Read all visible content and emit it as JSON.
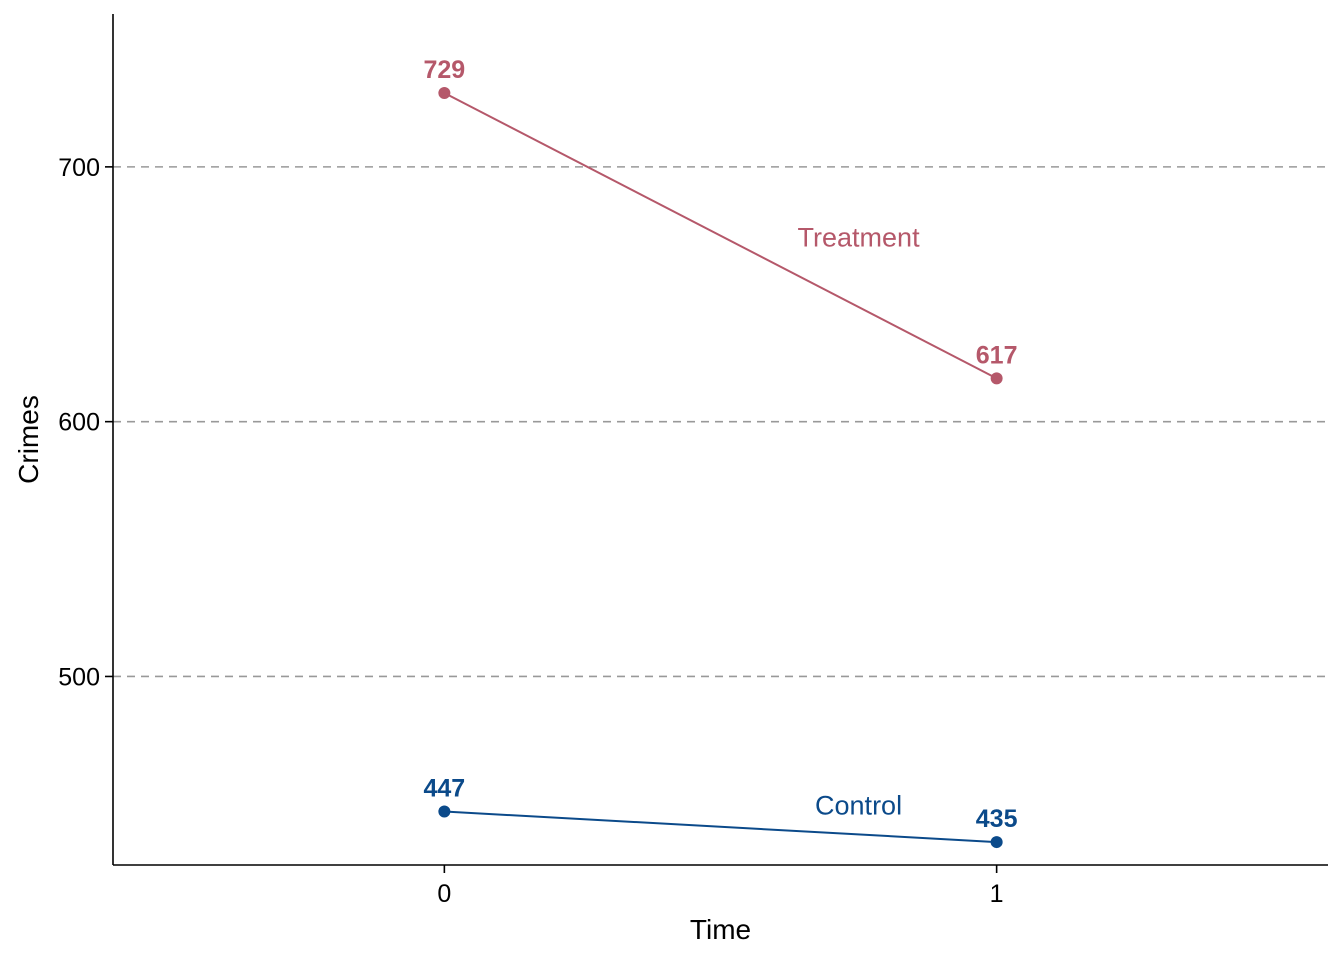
{
  "chart_data": {
    "type": "line",
    "xlabel": "Time",
    "ylabel": "Crimes",
    "x_ticks": [
      "0",
      "1"
    ],
    "y_ticks": [
      500,
      600,
      700
    ],
    "xlim": [
      -0.6,
      1.6
    ],
    "ylim": [
      426,
      760
    ],
    "grid": {
      "horizontal": true,
      "style": "dashed",
      "color": "#999999"
    },
    "legend": "none",
    "series": [
      {
        "name": "Treatment",
        "color": "#b5586a",
        "x": [
          0,
          1
        ],
        "values": [
          729,
          617
        ],
        "labels": [
          "729",
          "617"
        ],
        "name_label_pos": {
          "x": 0.75,
          "y": 670
        }
      },
      {
        "name": "Control",
        "color": "#0b4a8a",
        "x": [
          0,
          1
        ],
        "values": [
          447,
          435
        ],
        "labels": [
          "447",
          "435"
        ],
        "name_label_pos": {
          "x": 0.75,
          "y": 447
        }
      }
    ]
  }
}
